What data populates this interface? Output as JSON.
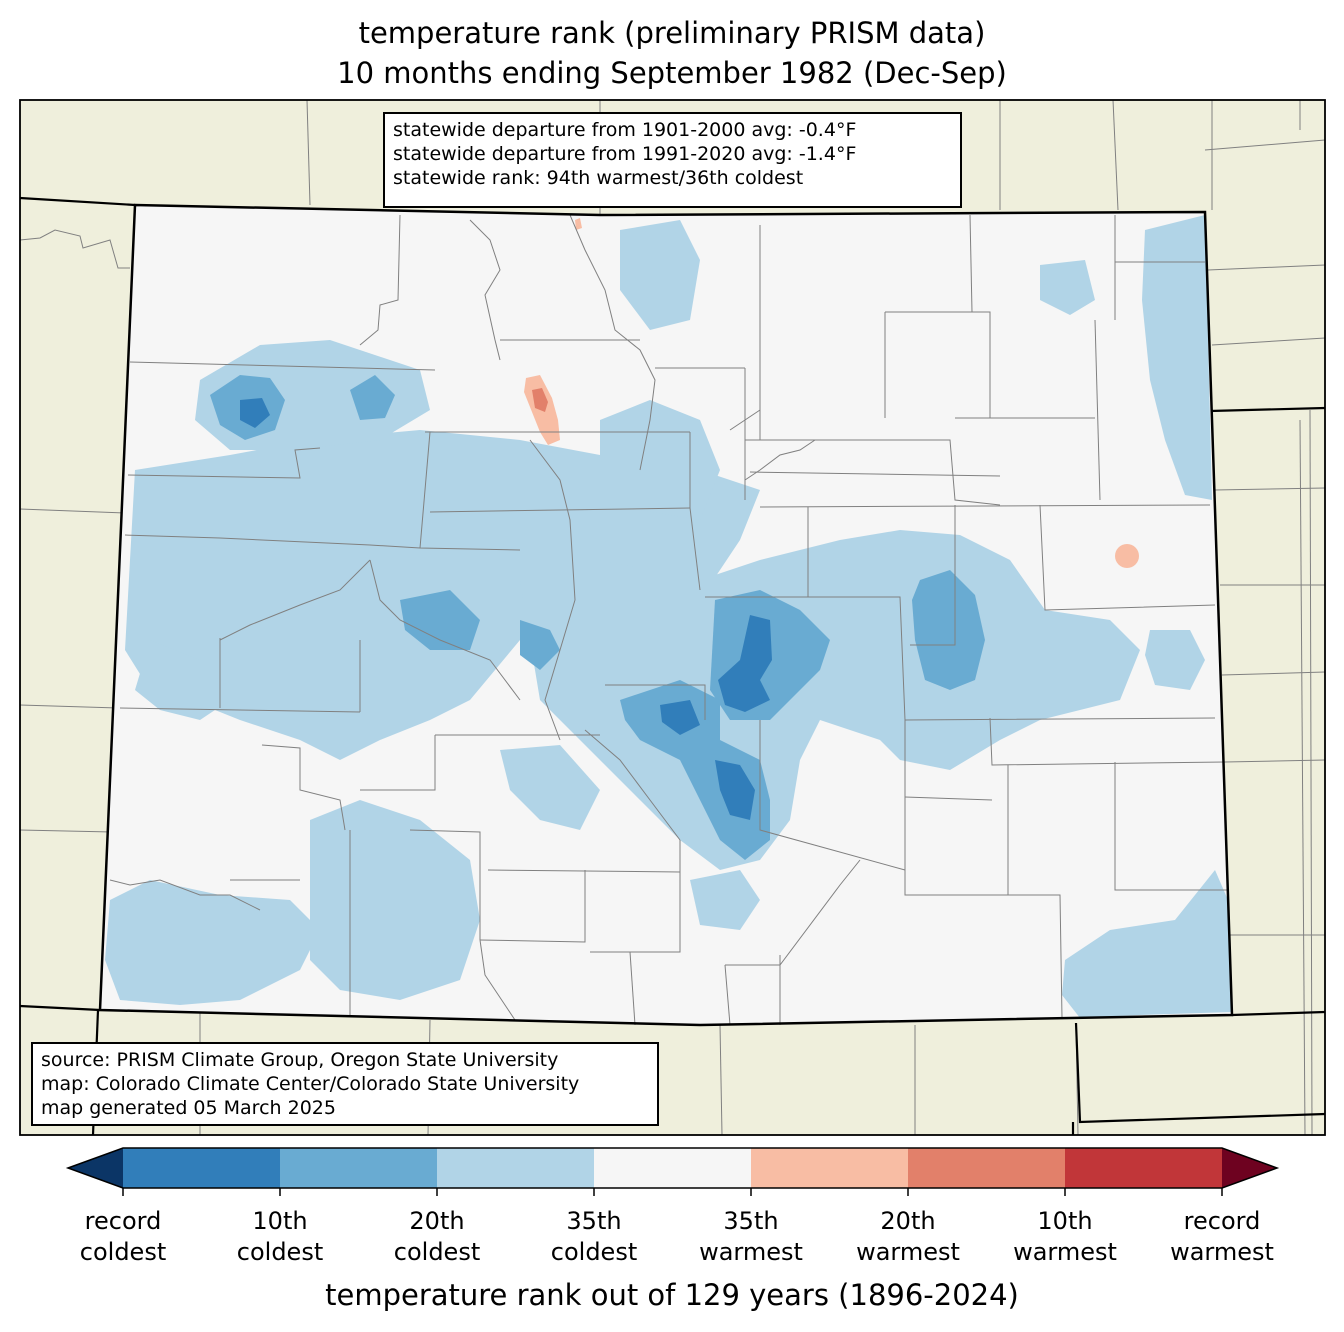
{
  "title": {
    "line1": "temperature rank (preliminary PRISM data)",
    "line2": "10 months ending September 1982 (Dec-Sep)"
  },
  "stats": {
    "line1": "statewide departure from 1901-2000 avg: -0.4°F",
    "line2": "statewide departure from 1991-2020 avg: -1.4°F",
    "line3": "statewide rank: 94th warmest/36th coldest"
  },
  "source": {
    "line1": "source: PRISM Climate Group, Oregon State University",
    "line2": "map: Colorado Climate Center/Colorado State University",
    "line3": "map generated 05 March 2025"
  },
  "colors": {
    "land_outside": "#efefdc",
    "state_fill": "#f6f6f6",
    "cold_35": "#b1d4e7",
    "cold_20": "#69abd2",
    "cold_10": "#317eba",
    "cold_record": "#0b3566",
    "warm_35": "#f8bda4",
    "warm_20": "#e2806a",
    "warm_10": "#c13639",
    "warm_record": "#6e0220"
  },
  "colorbar": {
    "title": "temperature rank out of 129 years (1896-2024)",
    "tick_labels": [
      {
        "line1": "record",
        "line2": "coldest"
      },
      {
        "line1": "10th",
        "line2": "coldest"
      },
      {
        "line1": "20th",
        "line2": "coldest"
      },
      {
        "line1": "35th",
        "line2": "coldest"
      },
      {
        "line1": "35th",
        "line2": "warmest"
      },
      {
        "line1": "20th",
        "line2": "warmest"
      },
      {
        "line1": "10th",
        "line2": "warmest"
      },
      {
        "line1": "record",
        "line2": "warmest"
      }
    ]
  }
}
